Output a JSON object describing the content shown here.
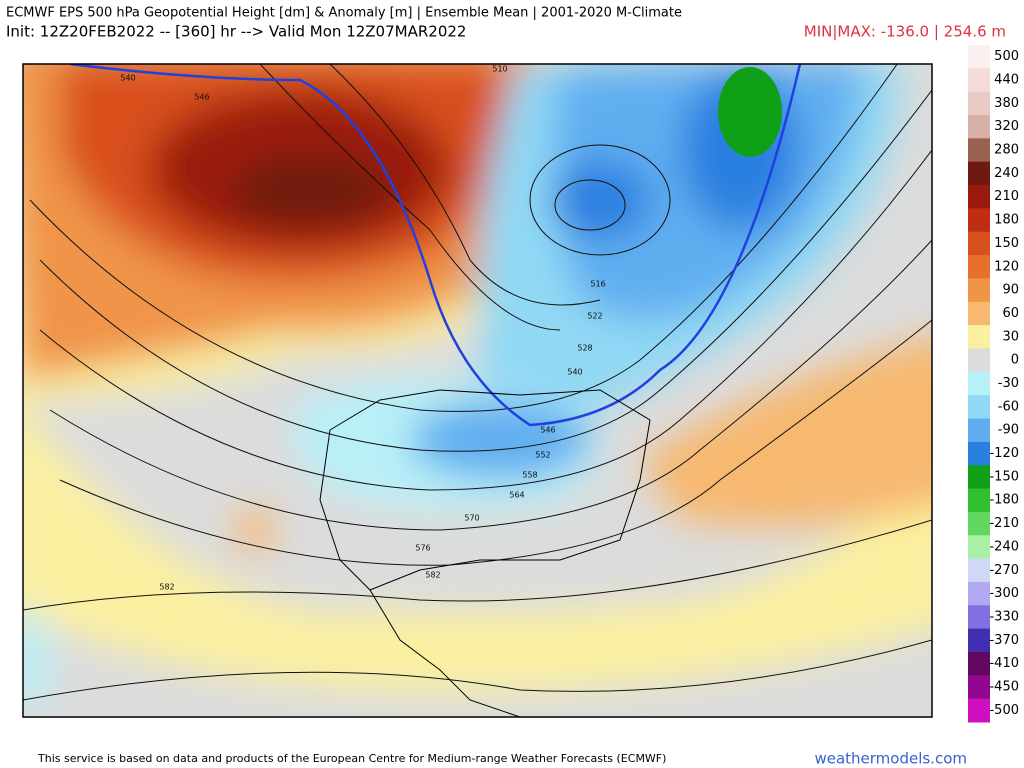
{
  "header": {
    "title": "ECMWF EPS 500 hPa Geopotential Height [dm] & Anomaly [m] | Ensemble Mean | 2001-2020 M-Climate",
    "subtitle": "Init: 12Z20FEB2022 -- [360] hr --> Valid Mon 12Z07MAR2022",
    "minmax": "MIN|MAX: -136.0 | 254.6 m"
  },
  "colorbar": {
    "labels": [
      "500",
      "440",
      "380",
      "320",
      "280",
      "240",
      "210",
      "180",
      "150",
      "120",
      "90",
      "60",
      "30",
      "0",
      "-30",
      "-60",
      "-90",
      "-120",
      "-150",
      "-180",
      "-210",
      "-240",
      "-270",
      "-300",
      "-330",
      "-370",
      "-410",
      "-450",
      "-500"
    ],
    "colors": [
      "#fbeff0",
      "#f3dcd8",
      "#e9cac4",
      "#d8b0a8",
      "#9a6050",
      "#6e1a10",
      "#9b1a0e",
      "#bf2e14",
      "#d8501e",
      "#e8702e",
      "#f09448",
      "#f7b870",
      "#fbf0a0",
      "#dcdcdc",
      "#b8f0f8",
      "#90d8f4",
      "#60aef0",
      "#2a80e0",
      "#10a018",
      "#30c030",
      "#60d860",
      "#a8f0a8",
      "#d0d8f8",
      "#b0a8f0",
      "#8070e0",
      "#4030b0",
      "#600860",
      "#900890",
      "#d010c0"
    ]
  },
  "map": {
    "contour_labels": [
      "540",
      "546",
      "510",
      "516",
      "522",
      "528",
      "540",
      "546",
      "552",
      "558",
      "564",
      "570",
      "576",
      "582",
      "582"
    ]
  },
  "footer": {
    "credit": "This service is based on data and products of the European Centre for Medium-range Weather Forecasts (ECMWF)",
    "site": "weathermodels.com"
  }
}
